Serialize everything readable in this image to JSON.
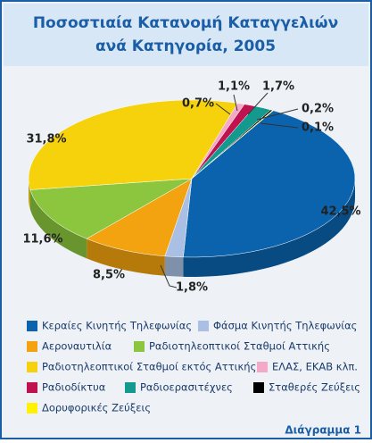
{
  "chart_data": {
    "type": "pie",
    "title": [
      "Ποσοστιαία Κατανομή Καταγγελιών",
      "ανά Κατηγορία, 2005"
    ],
    "categories": [
      "Κεραίες Κινητής Τηλεφωνίας",
      "Φάσμα Κινητής Τηλεφωνίας",
      "Αεροναυτιλία",
      "Ραδιοτηλεοπτικοί Σταθμοί Αττικής",
      "Ραδιοτηλεοπτικοί Σταθμοί εκτός Αττικής",
      "ΕΛΑΣ, ΕΚΑΒ κλπ.",
      "Ραδιοδίκτυα",
      "Ραδιοερασιτέχνες",
      "Σταθερές Ζεύξεις",
      "Δορυφορικές Ζεύξεις"
    ],
    "values": [
      42.5,
      1.8,
      8.5,
      11.6,
      31.8,
      0.7,
      1.1,
      1.7,
      0.2,
      0.1
    ],
    "value_labels": [
      "42,5%",
      "1,8%",
      "8,5%",
      "11,6%",
      "31,8%",
      "0,7%",
      "1,1%",
      "1,7%",
      "0,2%",
      "0,1%"
    ],
    "colors": [
      "#0b62ad",
      "#a9c0e4",
      "#f2a30f",
      "#8cc63e",
      "#f5d20c",
      "#f5a9c8",
      "#c0124f",
      "#14998f",
      "#000000",
      "#fff200"
    ],
    "footer": "Διάγραμμα 1"
  }
}
